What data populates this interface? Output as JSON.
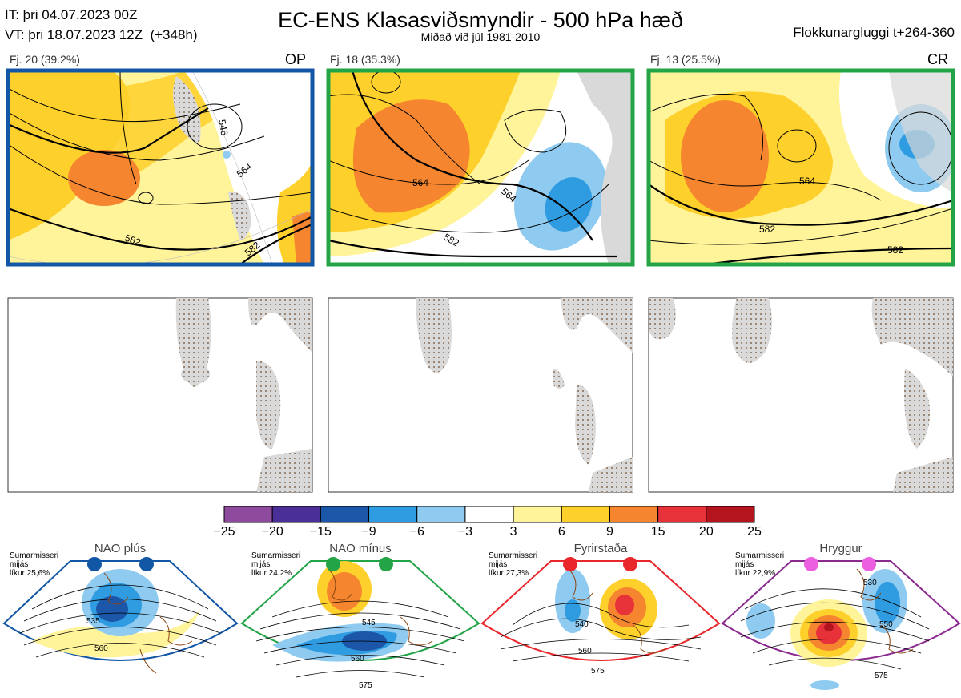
{
  "header": {
    "issue_time": "IT: þri 04.07.2023 00Z",
    "valid_time": "VT: þri 18.07.2023 12Z  (+348h)",
    "title": "EC-ENS Klasasviðsmyndir - 500 hPa hæð",
    "subtitle": "Miðað við júl 1981-2010",
    "window": "Flokkunargluggi t+264-360"
  },
  "clusters": [
    {
      "label": "Fj. 20 (39.2%)",
      "tag": "OP",
      "border_color": "#1256a6",
      "contours": [
        "546",
        "564",
        "582",
        "582"
      ]
    },
    {
      "label": "Fj. 18 (35.3%)",
      "tag": "",
      "border_color": "#22a447",
      "contours": [
        "564",
        "564",
        "582"
      ]
    },
    {
      "label": "Fj. 13 (25.5%)",
      "tag": "CR",
      "border_color": "#22a447",
      "contours": [
        "564",
        "582",
        "582"
      ]
    }
  ],
  "colorbar": {
    "ticks": [
      "−25",
      "−20",
      "−15",
      "−9",
      "−6",
      "−3",
      "3",
      "6",
      "9",
      "15",
      "20",
      "25"
    ],
    "colors": [
      "#8e4a9c",
      "#4a2f98",
      "#1b56a8",
      "#2f9be0",
      "#8fcbf0",
      "#ffffff",
      "#fff49a",
      "#fed02c",
      "#f5862f",
      "#e8323a",
      "#b3141e"
    ]
  },
  "regimes": [
    {
      "title": "NAO plús",
      "note": "Sumarmisseri\nmijás\nlíkur 25,6%",
      "dot_color": "#1256a6",
      "frame_color": "#1256a6",
      "contours": [
        "535",
        "560"
      ]
    },
    {
      "title": "NAO mínus",
      "note": "Sumarmisseri\nmijás\nlíkur 24,2%",
      "dot_color": "#22a447",
      "frame_color": "#22a447",
      "contours": [
        "545",
        "560",
        "575"
      ]
    },
    {
      "title": "Fyrirstaða",
      "note": "Sumarmisseri\nmijás\nlíkur 27,3%",
      "dot_color": "#e8262b",
      "frame_color": "#e8262b",
      "contours": [
        "540",
        "560",
        "575"
      ]
    },
    {
      "title": "Hryggur",
      "note": "Sumarmisseri\nmijás\nlíkur 22,9%",
      "dot_color": "#ec5fe0",
      "frame_color": "#8a2a8f",
      "contours": [
        "530",
        "550",
        "575"
      ]
    }
  ]
}
